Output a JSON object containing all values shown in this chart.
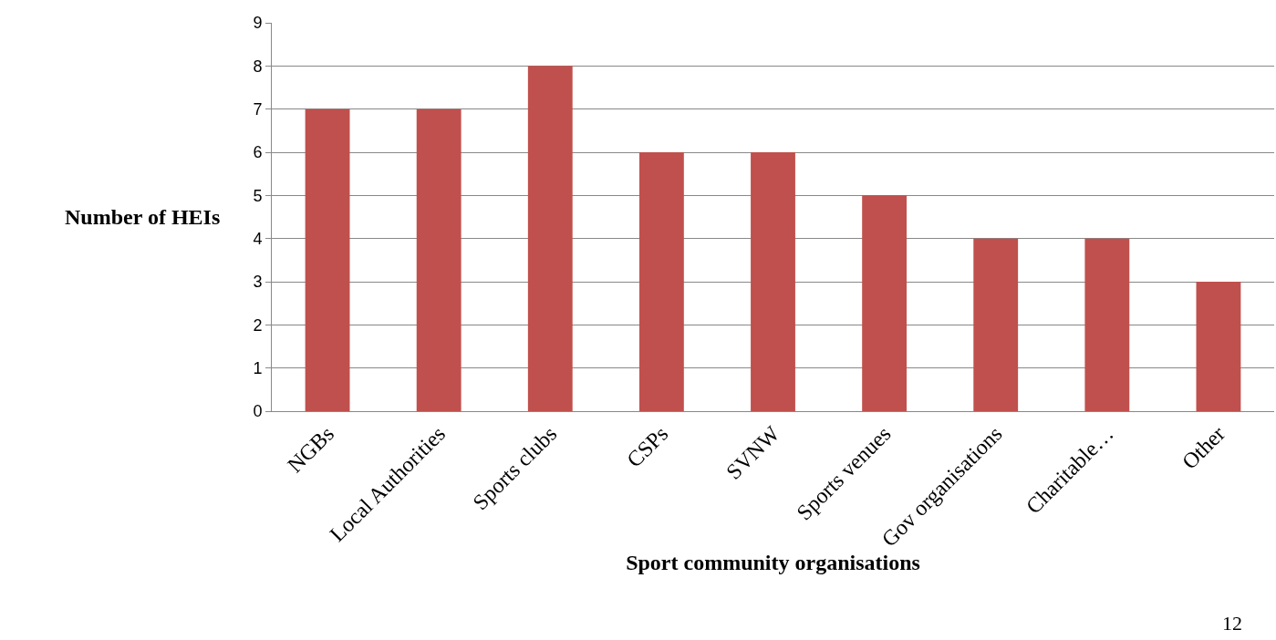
{
  "chart_data": {
    "type": "bar",
    "xlabel": "Sport community organisations",
    "ylabel": "Number of HEIs",
    "categories": [
      "NGBs",
      "Local Authorities",
      "Sports clubs",
      "CSPs",
      "SVNW",
      "Sports venues",
      "Gov organisations",
      "Charitable…",
      "Other"
    ],
    "values": [
      7,
      7,
      8,
      6,
      6,
      5,
      4,
      4,
      3
    ],
    "color": "#c0504d",
    "ylim": [
      0,
      9
    ],
    "yticks": [
      0,
      1,
      2,
      3,
      4,
      5,
      6,
      7,
      8,
      9
    ],
    "grid": "y",
    "annotations": [
      "12"
    ]
  }
}
